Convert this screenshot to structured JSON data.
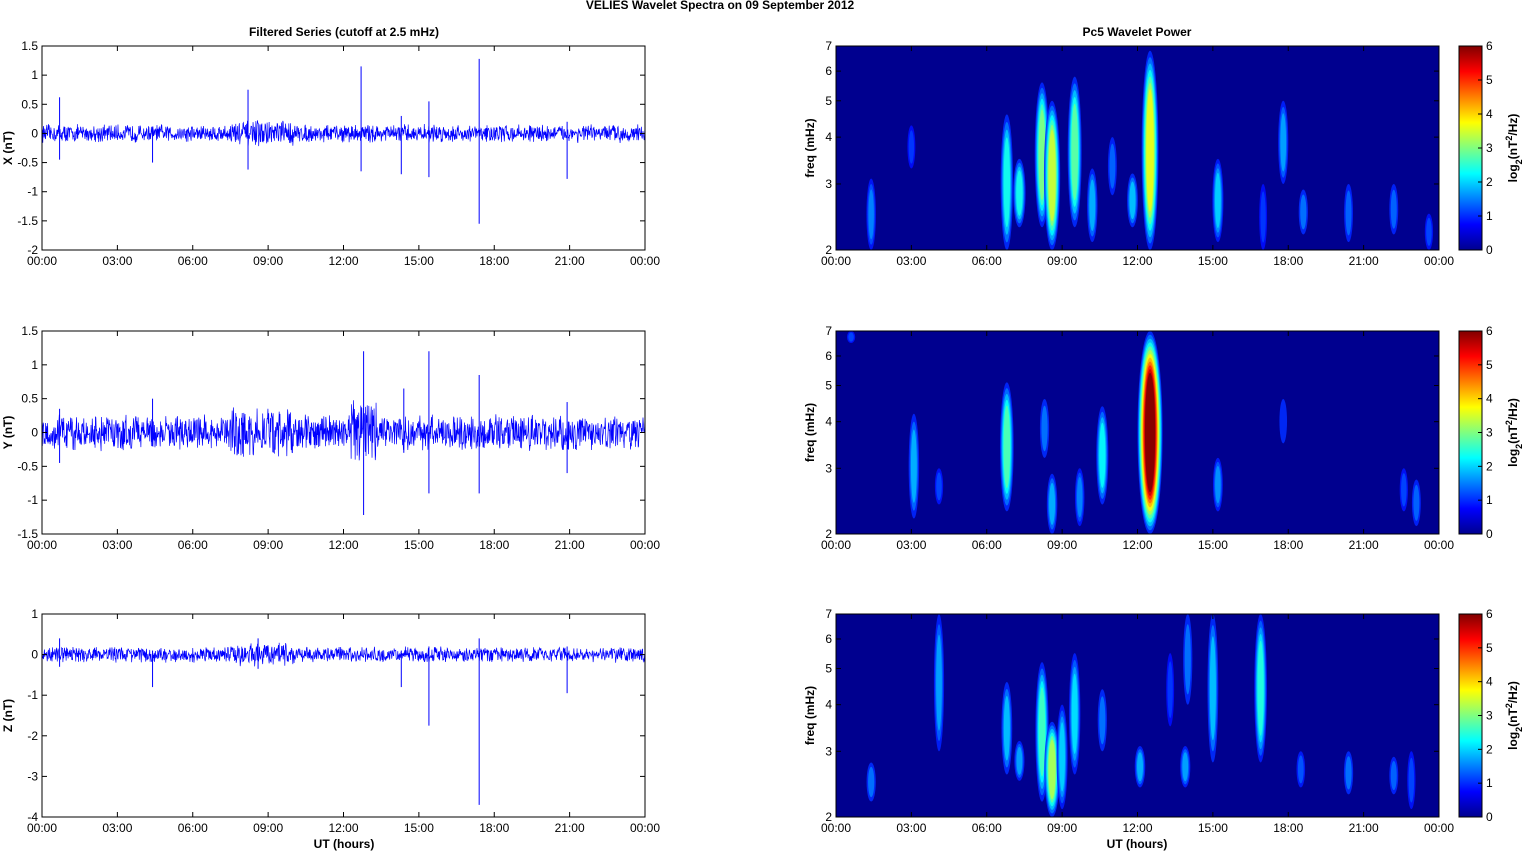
{
  "figure": {
    "title": "VELIES Wavelet Spectra on 09 September 2012",
    "left_title": "Filtered Series (cutoff at 2.5 mHz)",
    "right_title": "Pc5 Wavelet Power",
    "xlabel": "UT (hours)"
  },
  "colors": {
    "trace": "#0000ff",
    "spectrum_bg": "#00008f",
    "axis": "#000000"
  },
  "chart_data": [
    {
      "type": "line",
      "panel": "series-x",
      "ylabel": "X (nT)",
      "xlim": [
        0,
        24
      ],
      "ylim": [
        -2,
        1.5
      ],
      "yticks": [
        "-2",
        "-1.5",
        "-1",
        "-0.5",
        "0",
        "0.5",
        "1",
        "1.5"
      ],
      "xticks": [
        "00:00",
        "03:00",
        "06:00",
        "09:00",
        "12:00",
        "15:00",
        "18:00",
        "21:00",
        "00:00"
      ],
      "noise_amplitude": 0.12,
      "spikes": [
        [
          0.7,
          0.62,
          -0.45
        ],
        [
          4.4,
          0.1,
          -0.5
        ],
        [
          8.2,
          0.75,
          -0.62
        ],
        [
          12.7,
          1.15,
          -0.65
        ],
        [
          14.3,
          0.3,
          -0.7
        ],
        [
          15.4,
          0.55,
          -0.75
        ],
        [
          17.4,
          1.28,
          -1.55
        ],
        [
          20.9,
          0.2,
          -0.78
        ]
      ]
    },
    {
      "type": "line",
      "panel": "series-y",
      "ylabel": "Y (nT)",
      "xlim": [
        0,
        24
      ],
      "ylim": [
        -1.5,
        1.5
      ],
      "yticks": [
        "-1.5",
        "-1",
        "-0.5",
        "0",
        "0.5",
        "1",
        "1.5"
      ],
      "xticks": [
        "00:00",
        "03:00",
        "06:00",
        "09:00",
        "12:00",
        "15:00",
        "18:00",
        "21:00",
        "00:00"
      ],
      "noise_amplitude": 0.2,
      "spikes": [
        [
          0.7,
          0.35,
          -0.45
        ],
        [
          4.4,
          0.5,
          -0.2
        ],
        [
          12.8,
          1.2,
          -1.22
        ],
        [
          14.4,
          0.65,
          -0.3
        ],
        [
          15.4,
          1.2,
          -0.9
        ],
        [
          17.4,
          0.85,
          -0.9
        ],
        [
          20.9,
          0.45,
          -0.6
        ]
      ]
    },
    {
      "type": "line",
      "panel": "series-z",
      "ylabel": "Z (nT)",
      "xlim": [
        0,
        24
      ],
      "ylim": [
        -4,
        1
      ],
      "yticks": [
        "-4",
        "-3",
        "-2",
        "-1",
        "0",
        "1"
      ],
      "xticks": [
        "00:00",
        "03:00",
        "06:00",
        "09:00",
        "12:00",
        "15:00",
        "18:00",
        "21:00",
        "00:00"
      ],
      "noise_amplitude": 0.15,
      "spikes": [
        [
          0.7,
          0.4,
          -0.3
        ],
        [
          4.4,
          0.1,
          -0.8
        ],
        [
          8.6,
          0.4,
          -0.35
        ],
        [
          14.3,
          0.1,
          -0.8
        ],
        [
          15.4,
          0.2,
          -1.75
        ],
        [
          17.4,
          0.4,
          -3.7
        ],
        [
          20.9,
          0.2,
          -0.95
        ]
      ]
    },
    {
      "type": "heatmap",
      "panel": "wavelet-x",
      "ylabel": "freq (mHz)",
      "yscale": "log",
      "xlim": [
        0,
        24
      ],
      "ylim": [
        2,
        7
      ],
      "yticks": [
        "2",
        "3",
        "4",
        "5",
        "6",
        "7"
      ],
      "xticks": [
        "00:00",
        "03:00",
        "06:00",
        "09:00",
        "12:00",
        "15:00",
        "18:00",
        "21:00",
        "00:00"
      ],
      "colorbar": {
        "label": "log2(nT2/Hz)",
        "range": [
          0,
          6
        ],
        "ticks": [
          "0",
          "1",
          "2",
          "3",
          "4",
          "5",
          "6"
        ]
      },
      "blobs": [
        [
          1.4,
          2.0,
          3.1,
          1.1
        ],
        [
          3.0,
          3.3,
          4.3,
          0.6
        ],
        [
          6.8,
          2.0,
          4.6,
          2.0
        ],
        [
          7.3,
          2.3,
          3.5,
          2.0
        ],
        [
          8.2,
          2.3,
          5.6,
          2.7
        ],
        [
          8.6,
          2.0,
          5.0,
          3.2
        ],
        [
          9.5,
          2.3,
          5.8,
          2.5
        ],
        [
          10.2,
          2.1,
          3.3,
          1.4
        ],
        [
          11.0,
          2.8,
          4.0,
          0.9
        ],
        [
          11.8,
          2.3,
          3.2,
          1.5
        ],
        [
          12.5,
          2.0,
          6.8,
          3.4
        ],
        [
          15.2,
          2.1,
          3.5,
          1.6
        ],
        [
          17.0,
          2.0,
          3.0,
          0.6
        ],
        [
          17.8,
          3.0,
          5.0,
          1.3
        ],
        [
          18.6,
          2.2,
          2.9,
          1.0
        ],
        [
          20.4,
          2.1,
          3.0,
          0.9
        ],
        [
          22.2,
          2.2,
          3.0,
          0.9
        ],
        [
          23.6,
          2.0,
          2.5,
          0.7
        ]
      ]
    },
    {
      "type": "heatmap",
      "panel": "wavelet-y",
      "ylabel": "freq (mHz)",
      "yscale": "log",
      "xlim": [
        0,
        24
      ],
      "ylim": [
        2,
        7
      ],
      "yticks": [
        "2",
        "3",
        "4",
        "5",
        "6",
        "7"
      ],
      "xticks": [
        "00:00",
        "03:00",
        "06:00",
        "09:00",
        "12:00",
        "15:00",
        "18:00",
        "21:00",
        "00:00"
      ],
      "colorbar": {
        "label": "log2(nT2/Hz)",
        "range": [
          0,
          6
        ],
        "ticks": [
          "0",
          "1",
          "2",
          "3",
          "4",
          "5",
          "6"
        ]
      },
      "blobs": [
        [
          0.6,
          6.5,
          7.0,
          0.7
        ],
        [
          3.1,
          2.2,
          4.2,
          1.4
        ],
        [
          4.1,
          2.4,
          3.0,
          0.7
        ],
        [
          6.8,
          2.3,
          5.1,
          2.4
        ],
        [
          8.3,
          3.2,
          4.6,
          1.0
        ],
        [
          8.6,
          2.0,
          2.9,
          1.4
        ],
        [
          9.7,
          2.1,
          3.0,
          1.1
        ],
        [
          10.6,
          2.4,
          4.4,
          1.9
        ],
        [
          12.5,
          2.0,
          7.0,
          6.0
        ],
        [
          15.2,
          2.3,
          3.2,
          1.2
        ],
        [
          17.8,
          3.5,
          4.6,
          0.5
        ],
        [
          22.6,
          2.3,
          3.0,
          0.7
        ],
        [
          23.1,
          2.1,
          2.8,
          0.9
        ]
      ]
    },
    {
      "type": "heatmap",
      "panel": "wavelet-z",
      "ylabel": "freq (mHz)",
      "xlabel": "UT (hours)",
      "yscale": "log",
      "xlim": [
        0,
        24
      ],
      "ylim": [
        2,
        7
      ],
      "yticks": [
        "2",
        "3",
        "4",
        "5",
        "6",
        "7"
      ],
      "xticks": [
        "00:00",
        "03:00",
        "06:00",
        "09:00",
        "12:00",
        "15:00",
        "18:00",
        "21:00",
        "00:00"
      ],
      "colorbar": {
        "label": "log2(nT2/Hz)",
        "range": [
          0,
          6
        ],
        "ticks": [
          "0",
          "1",
          "2",
          "3",
          "4",
          "5",
          "6"
        ]
      },
      "blobs": [
        [
          1.4,
          2.2,
          2.8,
          1.0
        ],
        [
          4.1,
          3.0,
          7.0,
          1.3
        ],
        [
          6.8,
          2.6,
          4.6,
          1.5
        ],
        [
          7.3,
          2.5,
          3.2,
          1.3
        ],
        [
          8.2,
          2.2,
          5.2,
          2.3
        ],
        [
          8.6,
          2.0,
          3.6,
          3.0
        ],
        [
          9.0,
          2.1,
          4.0,
          1.6
        ],
        [
          9.5,
          2.6,
          5.5,
          1.7
        ],
        [
          10.6,
          3.0,
          4.4,
          1.0
        ],
        [
          12.1,
          2.4,
          3.1,
          1.4
        ],
        [
          13.3,
          3.5,
          5.5,
          0.6
        ],
        [
          13.9,
          2.4,
          3.1,
          1.3
        ],
        [
          14.0,
          4.0,
          7.0,
          1.0
        ],
        [
          15.0,
          2.8,
          7.0,
          1.5
        ],
        [
          16.9,
          2.8,
          7.0,
          2.1
        ],
        [
          18.5,
          2.4,
          3.0,
          0.8
        ],
        [
          20.4,
          2.3,
          3.0,
          1.0
        ],
        [
          22.2,
          2.3,
          2.9,
          0.9
        ],
        [
          22.9,
          2.1,
          3.0,
          0.7
        ]
      ]
    }
  ]
}
